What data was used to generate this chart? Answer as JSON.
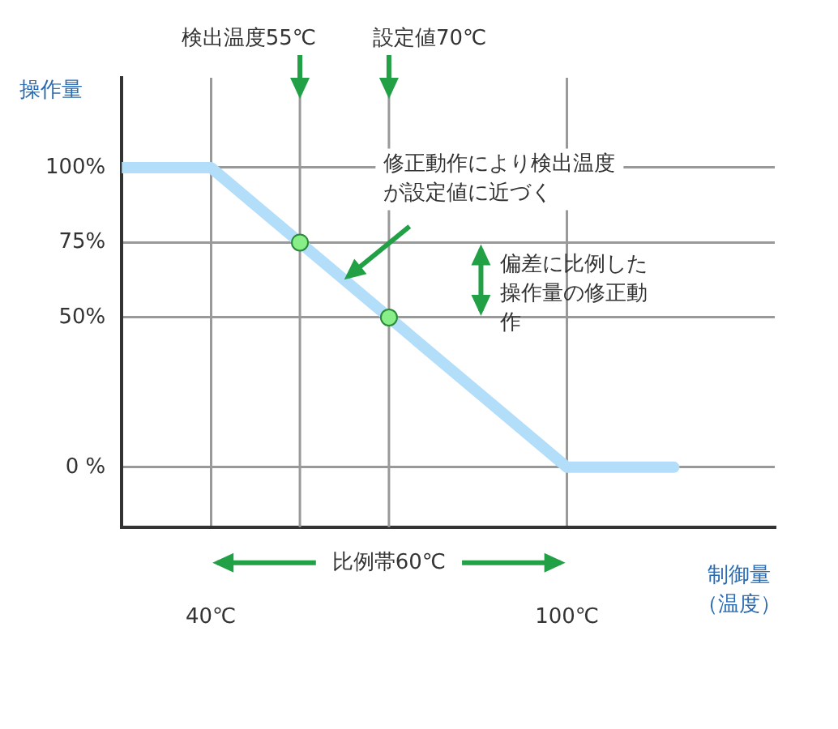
{
  "chart_data": {
    "type": "line",
    "ylabel": "操作量",
    "xlabel": "制御量（温度）",
    "xlim": [
      25,
      135
    ],
    "ylim": [
      -20,
      130
    ],
    "xticks": [
      {
        "value": 40,
        "label": "40℃"
      },
      {
        "value": 100,
        "label": "100℃"
      }
    ],
    "yticks": [
      {
        "value": 0,
        "label": "0 %"
      },
      {
        "value": 50,
        "label": "50%"
      },
      {
        "value": 75,
        "label": "75%"
      },
      {
        "value": 100,
        "label": "100%"
      }
    ],
    "grid": true,
    "legend": false,
    "series": [
      {
        "color": "#b3defa",
        "x": [
          25,
          40,
          100,
          118
        ],
        "values": [
          100,
          100,
          0,
          0
        ],
        "marker": "none"
      },
      {
        "type": "scatter",
        "color": "#88ee88",
        "x": [
          55,
          70
        ],
        "values": [
          75,
          50
        ],
        "marker": "circle"
      }
    ],
    "ref_lines": [
      {
        "axis": "x",
        "value": 55,
        "label": "検出温度55℃",
        "color": "#999999"
      },
      {
        "axis": "x",
        "value": 70,
        "label": "設定値70℃",
        "color": "#999999"
      }
    ],
    "annotations": [
      {
        "text": "修正動作により検出温度が設定値に近づく",
        "x": 62,
        "y": 62
      },
      "偏差に比例した操作量の修正動作",
      "比例帯60℃"
    ]
  }
}
